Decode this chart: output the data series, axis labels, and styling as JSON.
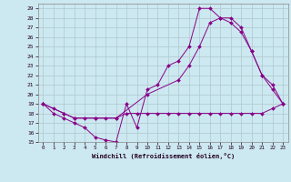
{
  "xlabel": "Windchill (Refroidissement éolien,°C)",
  "xlim": [
    -0.5,
    23.5
  ],
  "ylim": [
    15,
    29.5
  ],
  "yticks": [
    15,
    16,
    17,
    18,
    19,
    20,
    21,
    22,
    23,
    24,
    25,
    26,
    27,
    28,
    29
  ],
  "xticks": [
    0,
    1,
    2,
    3,
    4,
    5,
    6,
    7,
    8,
    9,
    10,
    11,
    12,
    13,
    14,
    15,
    16,
    17,
    18,
    19,
    20,
    21,
    22,
    23
  ],
  "bg_color": "#cce8f0",
  "grid_color": "#b0c8d0",
  "line_color": "#880088",
  "series": [
    {
      "x": [
        0,
        1,
        2,
        3,
        4,
        5,
        6,
        7,
        8,
        9,
        10,
        11,
        12,
        13,
        14,
        15,
        16,
        17,
        18,
        19,
        20,
        21,
        22,
        23
      ],
      "y": [
        19,
        18,
        17.5,
        17,
        16.5,
        15.5,
        15.2,
        15,
        19,
        16.5,
        20.5,
        21,
        23,
        23.5,
        25,
        29,
        29,
        28,
        28,
        27,
        24.5,
        22,
        20.5,
        19
      ]
    },
    {
      "x": [
        0,
        1,
        2,
        3,
        4,
        5,
        6,
        7,
        8,
        9,
        10,
        11,
        12,
        13,
        14,
        15,
        16,
        17,
        18,
        19,
        20,
        21,
        22,
        23
      ],
      "y": [
        19,
        18.5,
        18,
        17.5,
        17.5,
        17.5,
        17.5,
        17.5,
        18,
        18,
        18,
        18,
        18,
        18,
        18,
        18,
        18,
        18,
        18,
        18,
        18,
        18,
        18.5,
        19
      ]
    },
    {
      "x": [
        0,
        2,
        3,
        5,
        7,
        10,
        13,
        14,
        15,
        16,
        17,
        18,
        19,
        20,
        21,
        22,
        23
      ],
      "y": [
        19,
        18,
        17.5,
        17.5,
        17.5,
        20,
        21.5,
        23,
        25,
        27.5,
        28,
        27.5,
        26.5,
        24.5,
        22,
        21,
        19
      ]
    }
  ]
}
